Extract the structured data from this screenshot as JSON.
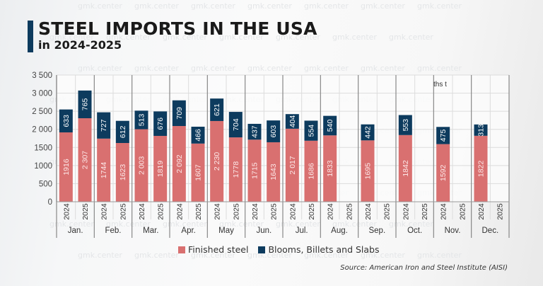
{
  "header": {
    "title": "STEEL IMPORTS IN THE USA",
    "subtitle": "in 2024-2025"
  },
  "watermark_text": "gmk.center",
  "unit_label": "ths t",
  "legend": [
    {
      "name": "Finished steel",
      "color": "#d97070"
    },
    {
      "name": "Blooms, Billets and Slabs",
      "color": "#0d3b5e"
    }
  ],
  "source": "Source: American Iron and Steel Institute (AISI)",
  "chart_data": {
    "type": "bar",
    "stacked": true,
    "title": "STEEL IMPORTS IN THE USA in 2024-2025",
    "xlabel": "",
    "ylabel": "ths t",
    "ylim": [
      0,
      3500
    ],
    "yticks": [
      0,
      500,
      1000,
      1500,
      2000,
      2500,
      3000,
      3500
    ],
    "ytick_labels": [
      "0",
      "500",
      "1000",
      "1500",
      "2 000",
      "2 500",
      "3 000",
      "3 500"
    ],
    "grid": true,
    "legend_position": "bottom",
    "months": [
      "Jan.",
      "Feb.",
      "Mar.",
      "Apr.",
      "May",
      "Jun.",
      "Jul.",
      "Aug.",
      "Sep.",
      "Oct.",
      "Nov.",
      "Dec."
    ],
    "years": [
      "2024",
      "2025"
    ],
    "series": [
      {
        "name": "Finished steel",
        "color": "#d97070",
        "values_2024": [
          1916,
          1744,
          2003,
          2092,
          2230,
          1715,
          2017,
          1833,
          1695,
          1842,
          1592,
          1822
        ],
        "labels_2024": [
          "1916",
          "1744",
          "2 003",
          "2 092",
          "2 230",
          "1715",
          "2 017",
          "1833",
          "1695",
          "1842",
          "1592",
          "1822"
        ],
        "values_2025": [
          2307,
          1623,
          1819,
          1607,
          1778,
          1643,
          1686,
          null,
          null,
          null,
          null,
          null
        ],
        "labels_2025": [
          "2 307",
          "1623",
          "1819",
          "1607",
          "1778",
          "1643",
          "1686",
          null,
          null,
          null,
          null,
          null
        ]
      },
      {
        "name": "Blooms, Billets and Slabs",
        "color": "#0d3b5e",
        "values_2024": [
          633,
          727,
          513,
          709,
          621,
          437,
          404,
          540,
          442,
          553,
          475,
          313
        ],
        "values_2025": [
          765,
          612,
          676,
          466,
          704,
          603,
          554,
          null,
          null,
          null,
          null,
          null
        ]
      }
    ]
  }
}
